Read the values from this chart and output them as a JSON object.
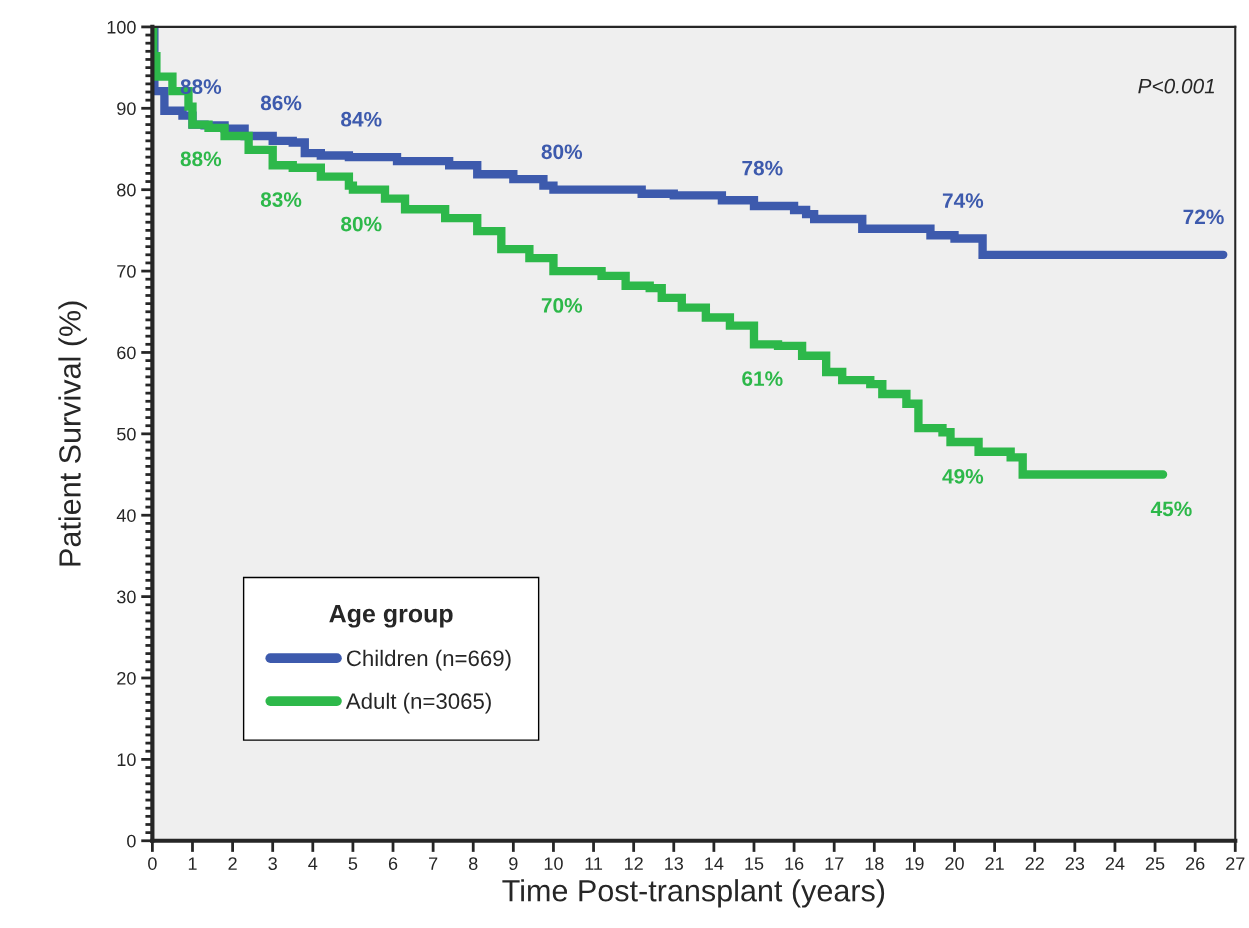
{
  "chart_data": {
    "type": "step",
    "xlabel": "Time Post-transplant (years)",
    "ylabel": "Patient Survival (%)",
    "xlim": [
      0,
      27
    ],
    "ylim": [
      0,
      100
    ],
    "xticks": [
      0,
      1,
      2,
      3,
      4,
      5,
      6,
      7,
      8,
      9,
      10,
      11,
      12,
      13,
      14,
      15,
      16,
      17,
      18,
      19,
      20,
      21,
      22,
      23,
      24,
      25,
      26,
      27
    ],
    "yticks": [
      0,
      10,
      20,
      30,
      40,
      50,
      60,
      70,
      80,
      90,
      100
    ],
    "grid": false,
    "legend": "bottom left",
    "legend_title": "Age group",
    "marker": "none",
    "line_style": "solid",
    "annotations": [
      "P<0.001"
    ],
    "series": [
      {
        "name": "Children (n=669)",
        "color": "#3d5aad",
        "x": [
          0,
          0.05,
          0.3,
          0.75,
          1.0,
          1.3,
          1.8,
          2.3,
          3.0,
          3.5,
          3.8,
          4.2,
          4.9,
          5.0,
          6.1,
          7.4,
          8.1,
          9.0,
          9.75,
          10.0,
          11.6,
          12.2,
          13.0,
          14.2,
          15.0,
          16.0,
          16.3,
          16.5,
          17.7,
          19.4,
          20.0,
          20.7,
          26.0,
          26.7
        ],
        "values": [
          100,
          92.1,
          89.7,
          89.1,
          88,
          87.9,
          87.5,
          86.6,
          86,
          85.8,
          84.5,
          84.2,
          84.0,
          84,
          83.5,
          83.0,
          81.9,
          81.3,
          80.5,
          80,
          80,
          79.5,
          79.3,
          78.7,
          78,
          77.5,
          77.0,
          76.4,
          75.2,
          74.4,
          74,
          72,
          72,
          72
        ],
        "value_labels": [
          null,
          null,
          null,
          null,
          "88%",
          null,
          null,
          null,
          "86%",
          null,
          null,
          null,
          null,
          "84%",
          null,
          null,
          null,
          null,
          null,
          "80%",
          null,
          null,
          null,
          null,
          "78%",
          null,
          null,
          null,
          null,
          null,
          "74%",
          null,
          "72%",
          null
        ]
      },
      {
        "name": "Adult (n=3065)",
        "color": "#2db84a",
        "x": [
          0,
          0.02,
          0.1,
          0.5,
          0.9,
          1.0,
          1.4,
          1.8,
          2.4,
          3.0,
          3.5,
          4.2,
          4.9,
          5.0,
          5.8,
          6.3,
          7.3,
          8.1,
          8.7,
          9.4,
          10.0,
          11.2,
          11.8,
          12.4,
          12.7,
          13.2,
          13.8,
          14.4,
          15.0,
          15.1,
          15.6,
          16.2,
          16.8,
          17.2,
          17.9,
          18.2,
          18.8,
          19.1,
          19.7,
          19.9,
          20.0,
          20.6,
          21.4,
          21.7,
          25.2
        ],
        "values": [
          100,
          96.4,
          93.9,
          92.1,
          90.2,
          88,
          87.6,
          86.6,
          84.9,
          83,
          82.7,
          81.6,
          80.5,
          80,
          78.9,
          77.6,
          76.5,
          74.9,
          72.7,
          71.6,
          70,
          69.4,
          68.2,
          67.9,
          66.7,
          65.5,
          64.3,
          63.3,
          61,
          61,
          60.8,
          59.6,
          57.6,
          56.6,
          56.1,
          54.9,
          53.7,
          50.7,
          50.2,
          49,
          49,
          47.8,
          47.1,
          45,
          45
        ],
        "value_labels": [
          null,
          null,
          null,
          null,
          null,
          "88%",
          null,
          null,
          null,
          "83%",
          null,
          null,
          null,
          "80%",
          null,
          null,
          null,
          null,
          null,
          null,
          "70%",
          null,
          null,
          null,
          null,
          null,
          null,
          null,
          "61%",
          null,
          null,
          null,
          null,
          null,
          null,
          null,
          null,
          null,
          null,
          null,
          "49%",
          null,
          null,
          null,
          "45%"
        ]
      }
    ]
  }
}
